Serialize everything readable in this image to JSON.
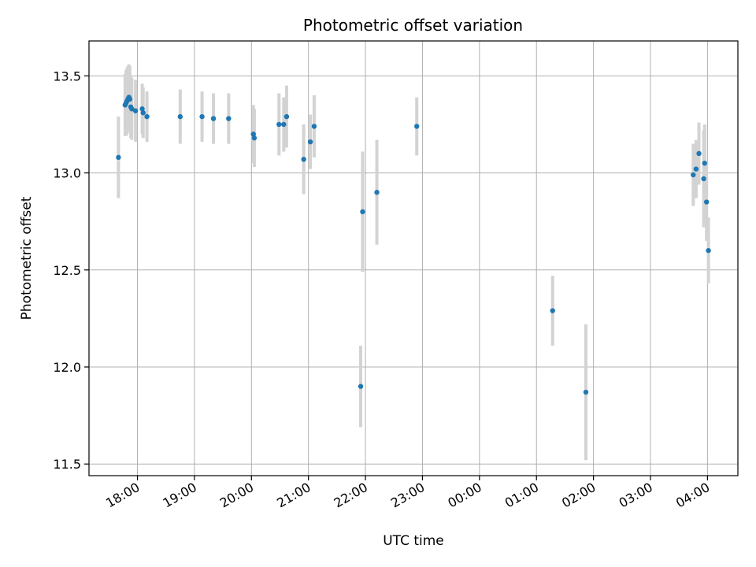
{
  "chart_data": {
    "type": "scatter",
    "title": "Photometric offset variation",
    "xlabel": "UTC time",
    "ylabel": "Photometric offset",
    "x_unit": "UTC time (HH:MM, night spanning midnight)",
    "xlim": [
      "17:09",
      "04:32"
    ],
    "ylim": [
      11.44,
      13.68
    ],
    "x_ticks": [
      "18:00",
      "19:00",
      "20:00",
      "21:00",
      "22:00",
      "23:00",
      "00:00",
      "01:00",
      "02:00",
      "03:00",
      "04:00"
    ],
    "y_ticks": [
      "11.5",
      "12.0",
      "12.5",
      "13.0",
      "13.5"
    ],
    "y_tick_values": [
      11.5,
      12.0,
      12.5,
      13.0,
      13.5
    ],
    "grid": true,
    "legend": "none",
    "point_color": "#1f77b4",
    "errorbar_color": "#d3d3d3",
    "points": [
      {
        "t": "17:40",
        "y": 13.08,
        "err": 0.21
      },
      {
        "t": "17:47",
        "y": 13.35,
        "err": 0.16
      },
      {
        "t": "17:48",
        "y": 13.36,
        "err": 0.17
      },
      {
        "t": "17:49",
        "y": 13.37,
        "err": 0.17
      },
      {
        "t": "17:50",
        "y": 13.38,
        "err": 0.17
      },
      {
        "t": "17:51",
        "y": 13.39,
        "err": 0.17
      },
      {
        "t": "17:52",
        "y": 13.38,
        "err": 0.17
      },
      {
        "t": "17:53",
        "y": 13.34,
        "err": 0.16
      },
      {
        "t": "17:54",
        "y": 13.33,
        "err": 0.16
      },
      {
        "t": "17:58",
        "y": 13.32,
        "err": 0.16
      },
      {
        "t": "18:05",
        "y": 13.33,
        "err": 0.13
      },
      {
        "t": "18:06",
        "y": 13.31,
        "err": 0.13
      },
      {
        "t": "18:10",
        "y": 13.29,
        "err": 0.13
      },
      {
        "t": "18:45",
        "y": 13.29,
        "err": 0.14
      },
      {
        "t": "19:08",
        "y": 13.29,
        "err": 0.13
      },
      {
        "t": "19:20",
        "y": 13.28,
        "err": 0.13
      },
      {
        "t": "19:36",
        "y": 13.28,
        "err": 0.13
      },
      {
        "t": "20:02",
        "y": 13.2,
        "err": 0.15
      },
      {
        "t": "20:03",
        "y": 13.18,
        "err": 0.15
      },
      {
        "t": "20:29",
        "y": 13.25,
        "err": 0.16
      },
      {
        "t": "20:34",
        "y": 13.25,
        "err": 0.14
      },
      {
        "t": "20:37",
        "y": 13.29,
        "err": 0.16
      },
      {
        "t": "20:55",
        "y": 13.07,
        "err": 0.18
      },
      {
        "t": "21:02",
        "y": 13.16,
        "err": 0.14
      },
      {
        "t": "21:06",
        "y": 13.24,
        "err": 0.16
      },
      {
        "t": "21:55",
        "y": 11.9,
        "err": 0.21
      },
      {
        "t": "21:57",
        "y": 12.8,
        "err": 0.31
      },
      {
        "t": "22:12",
        "y": 12.9,
        "err": 0.27
      },
      {
        "t": "22:54",
        "y": 13.24,
        "err": 0.15
      },
      {
        "t": "01:17",
        "y": 12.29,
        "err": 0.18
      },
      {
        "t": "01:52",
        "y": 11.87,
        "err": 0.35
      },
      {
        "t": "03:45",
        "y": 12.99,
        "err": 0.16
      },
      {
        "t": "03:48",
        "y": 13.02,
        "err": 0.15
      },
      {
        "t": "03:51",
        "y": 13.1,
        "err": 0.16
      },
      {
        "t": "03:56",
        "y": 12.97,
        "err": 0.25
      },
      {
        "t": "03:57",
        "y": 13.05,
        "err": 0.2
      },
      {
        "t": "03:59",
        "y": 12.85,
        "err": 0.2
      },
      {
        "t": "04:01",
        "y": 12.6,
        "err": 0.17
      }
    ]
  }
}
